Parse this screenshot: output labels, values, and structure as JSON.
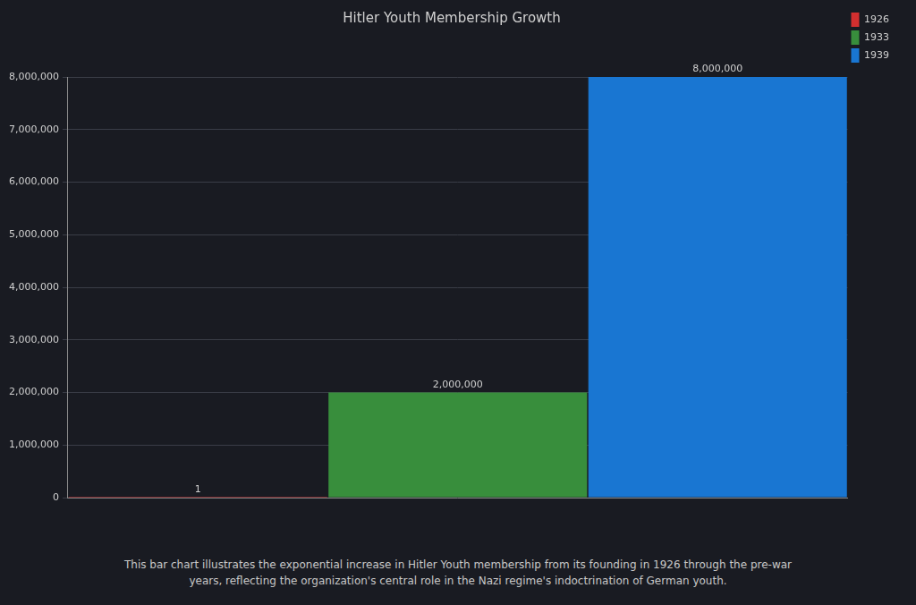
{
  "chart_data": {
    "type": "bar",
    "title": "Hitler Youth Membership Growth",
    "caption": "This bar chart illustrates the exponential increase in Hitler Youth membership from its founding in 1926 through the pre-war years, reflecting the organization's central role in the Nazi regime's indoctrination of German youth.",
    "categories": [
      "1926",
      "1933",
      "1939"
    ],
    "values": [
      1,
      2000000,
      8000000
    ],
    "value_labels": [
      "1",
      "2,000,000",
      "8,000,000"
    ],
    "colors": [
      "#d32f2f",
      "#388e3c",
      "#1976d2"
    ],
    "ylim": [
      0,
      8000000
    ],
    "yticks": [
      0,
      {
        "value": 1000000,
        "label": "1,000,000"
      },
      {
        "value": 2000000,
        "label": "2,000,000"
      },
      {
        "value": 3000000,
        "label": "3,000,000"
      },
      {
        "value": 4000000,
        "label": "4,000,000"
      },
      {
        "value": 5000000,
        "label": "5,000,000"
      },
      {
        "value": 6000000,
        "label": "6,000,000"
      },
      {
        "value": 7000000,
        "label": "7,000,000"
      },
      {
        "value": 8000000,
        "label": "8,000,000"
      }
    ],
    "grid": true,
    "legend": "top right",
    "data_labels": true,
    "tick_labels": "y"
  }
}
